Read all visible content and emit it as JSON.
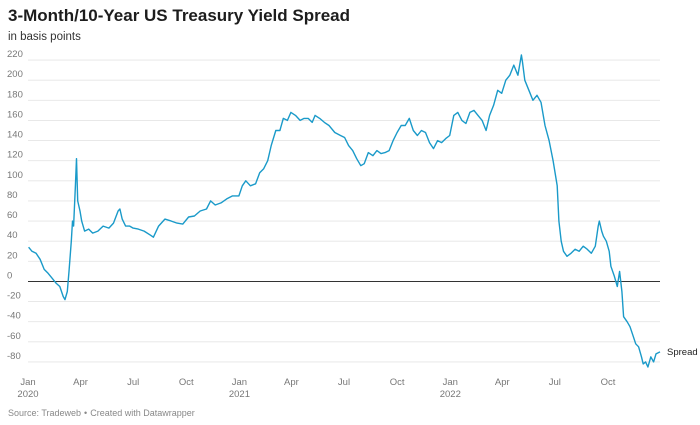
{
  "header": {
    "title": "3-Month/10-Year US Treasury Yield Spread",
    "subtitle": "in basis points"
  },
  "footer": {
    "source": "Source: Tradeweb",
    "separator": "•",
    "credit": "Created with Datawrapper"
  },
  "colors": {
    "line": "#1a9ac9",
    "grid": "#e5e5e5",
    "zero": "#333333"
  },
  "chart_data": {
    "type": "line",
    "title": "3-Month/10-Year US Treasury Yield Spread",
    "subtitle": "in basis points",
    "xlabel": "",
    "ylabel": "",
    "xlim": [
      "2020-01-01",
      "2022-12-30"
    ],
    "ylim": [
      -90,
      230
    ],
    "yticks": [
      220,
      200,
      180,
      160,
      140,
      120,
      100,
      80,
      60,
      40,
      20,
      0,
      -20,
      -40,
      -60,
      -80
    ],
    "xticks": [
      {
        "date": "2020-01-01",
        "label": "Jan",
        "year": "2020"
      },
      {
        "date": "2020-04-01",
        "label": "Apr",
        "year": ""
      },
      {
        "date": "2020-07-01",
        "label": "Jul",
        "year": ""
      },
      {
        "date": "2020-10-01",
        "label": "Oct",
        "year": ""
      },
      {
        "date": "2021-01-01",
        "label": "Jan",
        "year": "2021"
      },
      {
        "date": "2021-04-01",
        "label": "Apr",
        "year": ""
      },
      {
        "date": "2021-07-01",
        "label": "Jul",
        "year": ""
      },
      {
        "date": "2021-10-01",
        "label": "Oct",
        "year": ""
      },
      {
        "date": "2022-01-01",
        "label": "Jan",
        "year": "2022"
      },
      {
        "date": "2022-04-01",
        "label": "Apr",
        "year": ""
      },
      {
        "date": "2022-07-01",
        "label": "Jul",
        "year": ""
      },
      {
        "date": "2022-10-01",
        "label": "Oct",
        "year": ""
      }
    ],
    "grid": true,
    "legend": "none",
    "series": [
      {
        "name": "Spread",
        "points": [
          [
            "2020-01-02",
            34
          ],
          [
            "2020-01-08",
            30
          ],
          [
            "2020-01-15",
            28
          ],
          [
            "2020-01-22",
            22
          ],
          [
            "2020-01-29",
            12
          ],
          [
            "2020-02-05",
            8
          ],
          [
            "2020-02-12",
            3
          ],
          [
            "2020-02-19",
            -2
          ],
          [
            "2020-02-25",
            -5
          ],
          [
            "2020-03-02",
            -15
          ],
          [
            "2020-03-05",
            -18
          ],
          [
            "2020-03-09",
            -10
          ],
          [
            "2020-03-12",
            10
          ],
          [
            "2020-03-16",
            40
          ],
          [
            "2020-03-18",
            60
          ],
          [
            "2020-03-20",
            55
          ],
          [
            "2020-03-23",
            95
          ],
          [
            "2020-03-25",
            122
          ],
          [
            "2020-03-27",
            80
          ],
          [
            "2020-03-31",
            70
          ],
          [
            "2020-04-03",
            60
          ],
          [
            "2020-04-08",
            50
          ],
          [
            "2020-04-15",
            52
          ],
          [
            "2020-04-22",
            48
          ],
          [
            "2020-05-01",
            50
          ],
          [
            "2020-05-10",
            55
          ],
          [
            "2020-05-20",
            53
          ],
          [
            "2020-05-28",
            58
          ],
          [
            "2020-06-05",
            70
          ],
          [
            "2020-06-08",
            72
          ],
          [
            "2020-06-12",
            62
          ],
          [
            "2020-06-18",
            55
          ],
          [
            "2020-06-25",
            55
          ],
          [
            "2020-07-01",
            53
          ],
          [
            "2020-07-10",
            52
          ],
          [
            "2020-07-20",
            50
          ],
          [
            "2020-07-31",
            46
          ],
          [
            "2020-08-05",
            44
          ],
          [
            "2020-08-14",
            55
          ],
          [
            "2020-08-25",
            62
          ],
          [
            "2020-09-05",
            60
          ],
          [
            "2020-09-15",
            58
          ],
          [
            "2020-09-25",
            57
          ],
          [
            "2020-10-05",
            64
          ],
          [
            "2020-10-15",
            65
          ],
          [
            "2020-10-25",
            70
          ],
          [
            "2020-11-05",
            72
          ],
          [
            "2020-11-12",
            80
          ],
          [
            "2020-11-20",
            76
          ],
          [
            "2020-11-30",
            78
          ],
          [
            "2020-12-10",
            82
          ],
          [
            "2020-12-20",
            85
          ],
          [
            "2020-12-31",
            85
          ],
          [
            "2021-01-06",
            95
          ],
          [
            "2021-01-12",
            100
          ],
          [
            "2021-01-20",
            95
          ],
          [
            "2021-01-29",
            97
          ],
          [
            "2021-02-05",
            108
          ],
          [
            "2021-02-12",
            112
          ],
          [
            "2021-02-19",
            120
          ],
          [
            "2021-02-25",
            135
          ],
          [
            "2021-03-05",
            150
          ],
          [
            "2021-03-12",
            150
          ],
          [
            "2021-03-18",
            162
          ],
          [
            "2021-03-25",
            160
          ],
          [
            "2021-03-31",
            168
          ],
          [
            "2021-04-08",
            165
          ],
          [
            "2021-04-16",
            160
          ],
          [
            "2021-04-23",
            162
          ],
          [
            "2021-04-30",
            162
          ],
          [
            "2021-05-07",
            158
          ],
          [
            "2021-05-12",
            165
          ],
          [
            "2021-05-20",
            162
          ],
          [
            "2021-05-28",
            158
          ],
          [
            "2021-06-05",
            155
          ],
          [
            "2021-06-15",
            148
          ],
          [
            "2021-06-25",
            145
          ],
          [
            "2021-07-02",
            143
          ],
          [
            "2021-07-09",
            135
          ],
          [
            "2021-07-16",
            130
          ],
          [
            "2021-07-23",
            122
          ],
          [
            "2021-07-30",
            115
          ],
          [
            "2021-08-05",
            117
          ],
          [
            "2021-08-12",
            128
          ],
          [
            "2021-08-20",
            125
          ],
          [
            "2021-08-27",
            130
          ],
          [
            "2021-09-03",
            127
          ],
          [
            "2021-09-10",
            128
          ],
          [
            "2021-09-17",
            130
          ],
          [
            "2021-09-24",
            140
          ],
          [
            "2021-10-01",
            148
          ],
          [
            "2021-10-08",
            155
          ],
          [
            "2021-10-15",
            155
          ],
          [
            "2021-10-22",
            162
          ],
          [
            "2021-10-29",
            150
          ],
          [
            "2021-11-05",
            145
          ],
          [
            "2021-11-12",
            150
          ],
          [
            "2021-11-19",
            148
          ],
          [
            "2021-11-26",
            138
          ],
          [
            "2021-12-03",
            132
          ],
          [
            "2021-12-10",
            140
          ],
          [
            "2021-12-17",
            138
          ],
          [
            "2021-12-24",
            142
          ],
          [
            "2021-12-31",
            145
          ],
          [
            "2022-01-07",
            165
          ],
          [
            "2022-01-14",
            168
          ],
          [
            "2022-01-21",
            160
          ],
          [
            "2022-01-28",
            157
          ],
          [
            "2022-02-04",
            168
          ],
          [
            "2022-02-11",
            170
          ],
          [
            "2022-02-18",
            165
          ],
          [
            "2022-02-25",
            160
          ],
          [
            "2022-03-04",
            150
          ],
          [
            "2022-03-10",
            165
          ],
          [
            "2022-03-17",
            175
          ],
          [
            "2022-03-24",
            190
          ],
          [
            "2022-03-31",
            187
          ],
          [
            "2022-04-07",
            200
          ],
          [
            "2022-04-14",
            205
          ],
          [
            "2022-04-21",
            215
          ],
          [
            "2022-04-28",
            205
          ],
          [
            "2022-05-04",
            225
          ],
          [
            "2022-05-06",
            218
          ],
          [
            "2022-05-10",
            200
          ],
          [
            "2022-05-17",
            190
          ],
          [
            "2022-05-24",
            180
          ],
          [
            "2022-05-31",
            185
          ],
          [
            "2022-06-07",
            178
          ],
          [
            "2022-06-14",
            155
          ],
          [
            "2022-06-21",
            140
          ],
          [
            "2022-06-28",
            120
          ],
          [
            "2022-07-05",
            95
          ],
          [
            "2022-07-08",
            60
          ],
          [
            "2022-07-12",
            40
          ],
          [
            "2022-07-16",
            30
          ],
          [
            "2022-07-22",
            25
          ],
          [
            "2022-07-29",
            28
          ],
          [
            "2022-08-05",
            32
          ],
          [
            "2022-08-12",
            30
          ],
          [
            "2022-08-19",
            35
          ],
          [
            "2022-08-26",
            32
          ],
          [
            "2022-09-02",
            28
          ],
          [
            "2022-09-09",
            35
          ],
          [
            "2022-09-14",
            55
          ],
          [
            "2022-09-16",
            60
          ],
          [
            "2022-09-20",
            50
          ],
          [
            "2022-09-23",
            45
          ],
          [
            "2022-09-28",
            40
          ],
          [
            "2022-10-03",
            30
          ],
          [
            "2022-10-06",
            15
          ],
          [
            "2022-10-12",
            5
          ],
          [
            "2022-10-17",
            -5
          ],
          [
            "2022-10-21",
            10
          ],
          [
            "2022-10-25",
            -10
          ],
          [
            "2022-10-28",
            -35
          ],
          [
            "2022-11-03",
            -40
          ],
          [
            "2022-11-08",
            -45
          ],
          [
            "2022-11-14",
            -55
          ],
          [
            "2022-11-18",
            -62
          ],
          [
            "2022-11-23",
            -65
          ],
          [
            "2022-11-28",
            -75
          ],
          [
            "2022-12-01",
            -82
          ],
          [
            "2022-12-05",
            -80
          ],
          [
            "2022-12-09",
            -85
          ],
          [
            "2022-12-14",
            -75
          ],
          [
            "2022-12-19",
            -80
          ],
          [
            "2022-12-23",
            -72
          ],
          [
            "2022-12-30",
            -70
          ]
        ]
      }
    ]
  }
}
